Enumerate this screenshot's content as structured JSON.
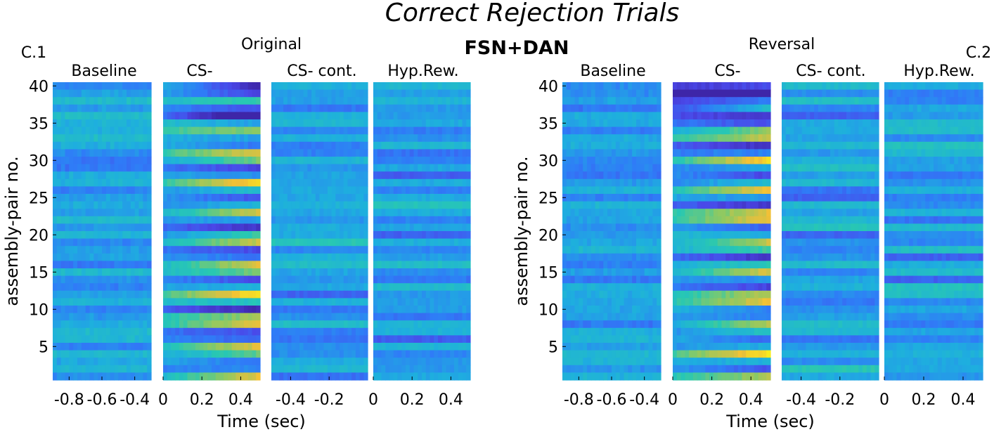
{
  "title": "Correct Rejection Trials",
  "center_label": "FSN+DAN",
  "colormap": [
    "#3e26a8",
    "#4a47e8",
    "#2f7cf7",
    "#1eafde",
    "#28c8b2",
    "#8ec962",
    "#f2bf37",
    "#f9f617"
  ],
  "chart_data": [
    {
      "type": "heatmap",
      "panel_id": "C.1",
      "condition": "Original",
      "ylabel": "assembly-pair no.",
      "xlabel": "Time (sec)",
      "ylim": [
        1,
        40
      ],
      "yticks": [
        5,
        10,
        15,
        20,
        25,
        30,
        35,
        40
      ],
      "segments": [
        {
          "label": "Baseline",
          "xlim": [
            -0.9,
            -0.3
          ],
          "xticks": [
            -0.8,
            -0.6,
            -0.4
          ]
        },
        {
          "label": "CS-",
          "xlim": [
            0,
            0.5
          ],
          "xticks": [
            0,
            0.2,
            0.4
          ]
        },
        {
          "label": "CS- cont.",
          "xlim": [
            -0.5,
            0
          ],
          "xticks": [
            -0.4,
            -0.2
          ]
        },
        {
          "label": "Hyp.Rew.",
          "xlim": [
            0,
            0.5
          ],
          "xticks": [
            0,
            0.2,
            0.4
          ]
        }
      ]
    },
    {
      "type": "heatmap",
      "panel_id": "C.2",
      "condition": "Reversal",
      "ylabel": "assembly-pair no.",
      "xlabel": "Time (sec)",
      "ylim": [
        1,
        40
      ],
      "yticks": [
        5,
        10,
        15,
        20,
        25,
        30,
        35,
        40
      ],
      "segments": [
        {
          "label": "Baseline",
          "xlim": [
            -0.9,
            -0.3
          ],
          "xticks": [
            -0.8,
            -0.6,
            -0.4
          ]
        },
        {
          "label": "CS-",
          "xlim": [
            0,
            0.5
          ],
          "xticks": [
            0,
            0.2,
            0.4
          ]
        },
        {
          "label": "CS- cont.",
          "xlim": [
            -0.5,
            0
          ],
          "xticks": [
            -0.4,
            -0.2
          ]
        },
        {
          "label": "Hyp.Rew.",
          "xlim": [
            0,
            0.5
          ],
          "xticks": [
            0,
            0.2,
            0.4
          ]
        }
      ]
    }
  ]
}
